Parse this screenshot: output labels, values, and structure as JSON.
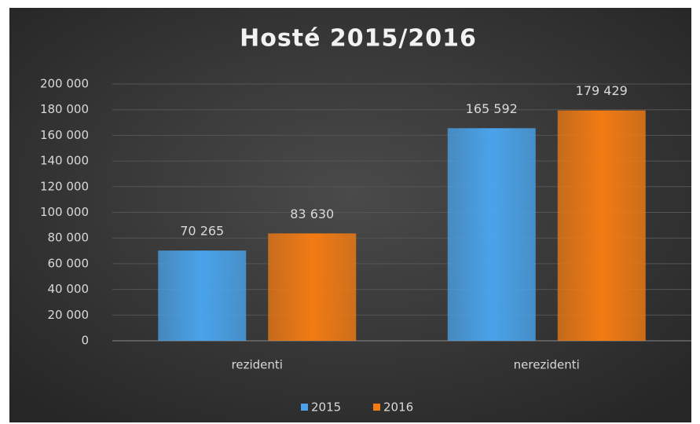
{
  "chart_data": {
    "type": "bar",
    "title": "Hosté 2015/2016",
    "categories": [
      "rezidenti",
      "nerezidenti"
    ],
    "series": [
      {
        "name": "2015",
        "color": "#4aa3ea",
        "values": [
          70265,
          165592
        ],
        "value_labels": [
          "70 265",
          "165 592"
        ]
      },
      {
        "name": "2016",
        "color": "#f27b14",
        "values": [
          83630,
          179429
        ],
        "value_labels": [
          "83 630",
          "179 429"
        ]
      }
    ],
    "ylim": [
      0,
      200000
    ],
    "yticks": [
      {
        "value": 0,
        "label": "0"
      },
      {
        "value": 20000,
        "label": "20 000"
      },
      {
        "value": 40000,
        "label": "40 000"
      },
      {
        "value": 60000,
        "label": "60 000"
      },
      {
        "value": 80000,
        "label": "80 000"
      },
      {
        "value": 100000,
        "label": "100 000"
      },
      {
        "value": 120000,
        "label": "120 000"
      },
      {
        "value": 140000,
        "label": "140 000"
      },
      {
        "value": 160000,
        "label": "160 000"
      },
      {
        "value": 180000,
        "label": "180 000"
      },
      {
        "value": 200000,
        "label": "200 000"
      }
    ],
    "grid": true,
    "legend": "bottom"
  }
}
